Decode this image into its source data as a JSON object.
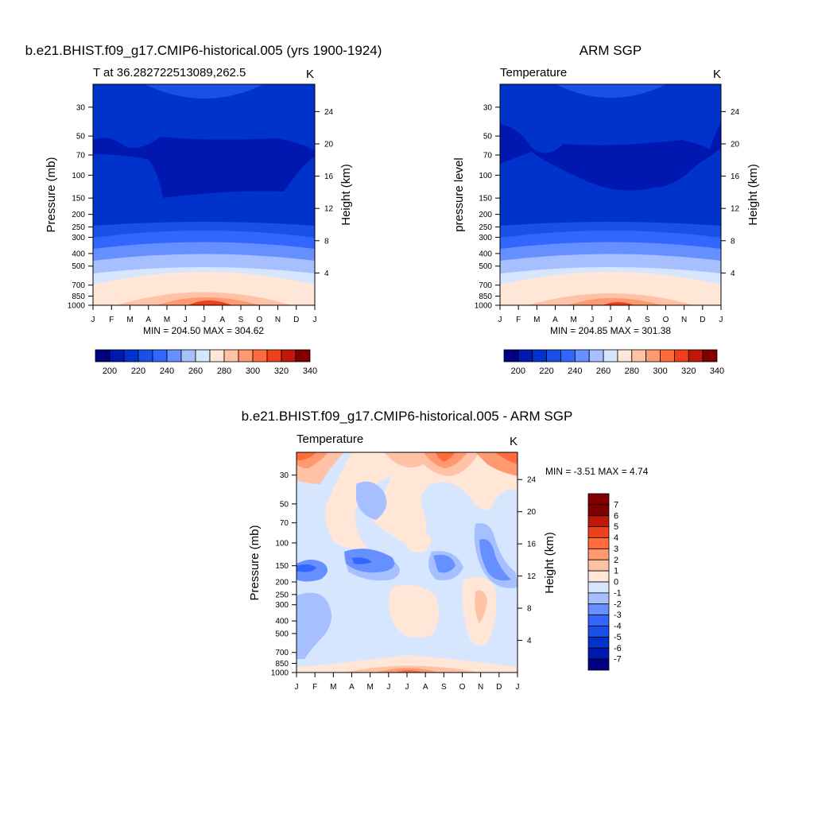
{
  "chart_data": [
    {
      "type": "heatmap",
      "title": "b.e21.BHIST.f09_g17.CMIP6-historical.005 (yrs 1900-1924)",
      "subtitle": "T at 36.282722513089,262.5",
      "units": "K",
      "ylabel_left": "Pressure (mb)",
      "ylabel_right": "Height (km)",
      "x_ticks": [
        "J",
        "F",
        "M",
        "A",
        "M",
        "J",
        "J",
        "A",
        "S",
        "O",
        "N",
        "D",
        "J"
      ],
      "pressure_ticks": [
        "30",
        "50",
        "70",
        "100",
        "150",
        "200",
        "250",
        "300",
        "400",
        "500",
        "700",
        "850",
        "1000"
      ],
      "height_ticks": [
        "24",
        "20",
        "16",
        "12",
        "8",
        "4"
      ],
      "stats": "MIN = 204.50 MAX = 304.62",
      "min": 204.5,
      "max": 304.62,
      "colorbar_labels": [
        "200",
        "220",
        "240",
        "260",
        "280",
        "300",
        "320",
        "340"
      ]
    },
    {
      "type": "heatmap",
      "title": "ARM SGP",
      "subtitle": "Temperature",
      "units": "K",
      "ylabel_left": "pressure level",
      "ylabel_right": "Height (km)",
      "x_ticks": [
        "J",
        "F",
        "M",
        "A",
        "M",
        "J",
        "J",
        "A",
        "S",
        "O",
        "N",
        "D",
        "J"
      ],
      "pressure_ticks": [
        "30",
        "50",
        "70",
        "100",
        "150",
        "200",
        "250",
        "300",
        "400",
        "500",
        "700",
        "850",
        "1000"
      ],
      "height_ticks": [
        "24",
        "20",
        "16",
        "12",
        "8",
        "4"
      ],
      "stats": "MIN = 204.85 MAX = 301.38",
      "min": 204.85,
      "max": 301.38,
      "colorbar_labels": [
        "200",
        "220",
        "240",
        "260",
        "280",
        "300",
        "320",
        "340"
      ]
    },
    {
      "type": "heatmap",
      "title": "b.e21.BHIST.f09_g17.CMIP6-historical.005 - ARM SGP",
      "subtitle": "Temperature",
      "units": "K",
      "ylabel_left": "Pressure (mb)",
      "ylabel_right": "Height (km)",
      "x_ticks": [
        "J",
        "F",
        "M",
        "A",
        "M",
        "J",
        "J",
        "A",
        "S",
        "O",
        "N",
        "D",
        "J"
      ],
      "pressure_ticks": [
        "30",
        "50",
        "70",
        "100",
        "150",
        "200",
        "250",
        "300",
        "400",
        "500",
        "700",
        "850",
        "1000"
      ],
      "height_ticks": [
        "24",
        "20",
        "16",
        "12",
        "8",
        "4"
      ],
      "stats": "MIN =  -3.51 MAX =   4.74",
      "min": -3.51,
      "max": 4.74,
      "colorbar_labels": [
        "7",
        "6",
        "5",
        "4",
        "3",
        "2",
        "1",
        "0",
        "-1",
        "-2",
        "-3",
        "-4",
        "-5",
        "-6",
        "-7"
      ]
    }
  ],
  "colors": {
    "abs_scale": [
      "#000080",
      "#0018b0",
      "#0033cc",
      "#1a50e6",
      "#3366ff",
      "#6690ff",
      "#a6c0ff",
      "#d6e6ff",
      "#ffe6d6",
      "#ffc2a6",
      "#ff9a70",
      "#ff6b3c",
      "#f0401a",
      "#c01808",
      "#800000"
    ],
    "diff_scale": [
      "#000080",
      "#0018b0",
      "#0033cc",
      "#1a50e6",
      "#3366ff",
      "#6690ff",
      "#a6c0ff",
      "#d6e6ff",
      "#ffe6d6",
      "#ffc2a6",
      "#ff9a70",
      "#ff6b3c",
      "#f0401a",
      "#c01808",
      "#800000"
    ]
  }
}
